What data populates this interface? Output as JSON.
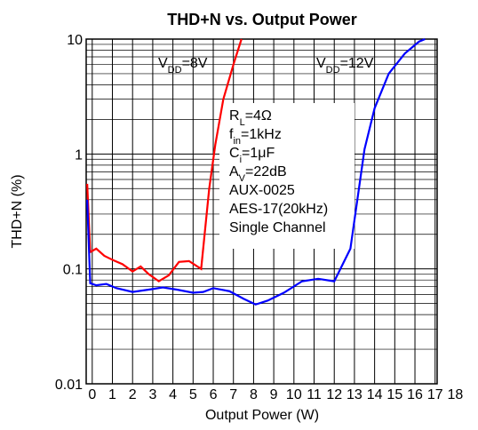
{
  "chart_data": {
    "type": "line",
    "title": "THD+N vs. Output Power",
    "xlabel": "Output Power (W)",
    "ylabel": "THD+N (%)",
    "log_y": true,
    "grid": true,
    "xlim": [
      -0.3,
      17.1
    ],
    "ylim": [
      0.01,
      10
    ],
    "xticks": [
      0,
      1,
      2,
      3,
      4,
      5,
      6,
      7,
      8,
      9,
      10,
      11,
      12,
      13,
      14,
      15,
      16,
      17,
      18
    ],
    "yticks": [
      0.01,
      0.1,
      1,
      10
    ],
    "series": [
      {
        "name": "8V",
        "color": "#ff0000",
        "x": [
          -0.25,
          -0.1,
          0.2,
          0.6,
          1,
          1.5,
          2,
          2.4,
          2.8,
          3.3,
          3.8,
          4.3,
          4.8,
          5.4,
          5.8,
          6.1,
          6.5,
          7,
          7.4
        ],
        "values": [
          0.55,
          0.14,
          0.15,
          0.13,
          0.12,
          0.11,
          0.095,
          0.105,
          0.09,
          0.078,
          0.088,
          0.115,
          0.117,
          0.1,
          0.5,
          1.2,
          3,
          6,
          10
        ]
      },
      {
        "name": "12V",
        "color": "#0000ff",
        "x": [
          -0.25,
          -0.1,
          0.2,
          0.7,
          1.2,
          2,
          2.8,
          3.5,
          4.2,
          5,
          5.5,
          6,
          6.8,
          7.5,
          8.1,
          8.7,
          9.5,
          10.4,
          11.2,
          12,
          12.8,
          13.5,
          14,
          14.7,
          15.5,
          16.2,
          16.5
        ],
        "values": [
          0.4,
          0.075,
          0.072,
          0.074,
          0.068,
          0.063,
          0.066,
          0.069,
          0.066,
          0.062,
          0.063,
          0.068,
          0.064,
          0.055,
          0.049,
          0.053,
          0.062,
          0.078,
          0.082,
          0.078,
          0.15,
          1.1,
          2.5,
          5,
          7.5,
          9.5,
          10
        ]
      }
    ],
    "annotations": [
      [
        {
          "text": "V"
        },
        {
          "text": "DD",
          "sub": true
        },
        {
          "text": "=8V"
        }
      ],
      [
        {
          "text": "V"
        },
        {
          "text": "DD",
          "sub": true
        },
        {
          "text": "=12V"
        }
      ],
      [
        {
          "text": "R"
        },
        {
          "text": "L",
          "sub": true
        },
        {
          "text": "=4Ω"
        }
      ],
      [
        {
          "text": "f"
        },
        {
          "text": "in",
          "sub": true
        },
        {
          "text": "=1kHz"
        }
      ],
      [
        {
          "text": "C"
        },
        {
          "text": "i",
          "sub": true
        },
        {
          "text": "=1μF"
        }
      ],
      [
        {
          "text": "A"
        },
        {
          "text": "V",
          "sub": true
        },
        {
          "text": "=22dB"
        }
      ],
      [
        {
          "text": "AUX-0025"
        }
      ],
      [
        {
          "text": "AES-17(20kHz)"
        }
      ],
      [
        {
          "text": "Single Channel"
        }
      ]
    ]
  }
}
